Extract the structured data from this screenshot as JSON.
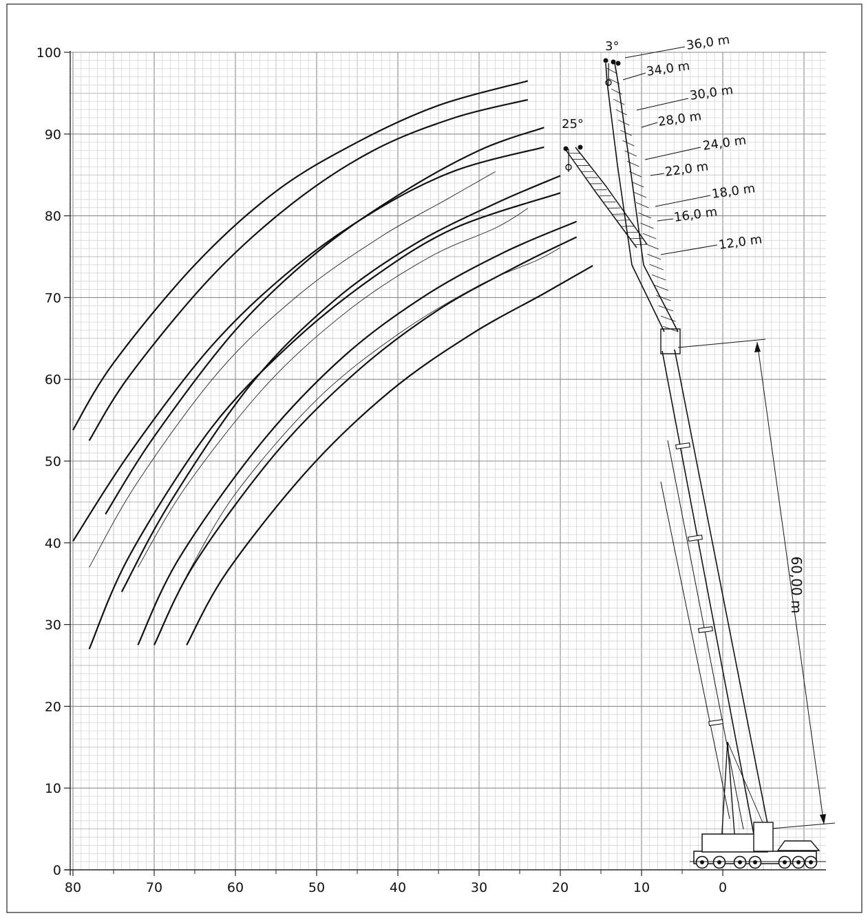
{
  "chart_data": {
    "type": "line",
    "x_axis": {
      "ticks": [
        "80",
        "70",
        "60",
        "50",
        "40",
        "30",
        "20",
        "10",
        "0"
      ],
      "range": [
        80,
        -12
      ]
    },
    "y_axis": {
      "ticks": [
        "0",
        "10",
        "20",
        "30",
        "40",
        "50",
        "60",
        "70",
        "80",
        "90",
        "100"
      ],
      "range": [
        0,
        100
      ]
    },
    "grid": true,
    "luffing_angles": [
      "3°",
      "25°"
    ],
    "main_boom_length": "60,00 m",
    "jib_lengths": [
      "36,0 m",
      "34,0 m",
      "30,0 m",
      "28,0 m",
      "24,0 m",
      "22,0 m",
      "18,0 m",
      "16,0 m",
      "12,0 m"
    ],
    "working_range_curves": [
      {
        "points": [
          [
            80,
            53.8
          ],
          [
            75,
            62
          ],
          [
            65,
            74
          ],
          [
            55,
            83
          ],
          [
            45,
            89
          ],
          [
            35,
            93.5
          ],
          [
            24,
            96.5
          ]
        ]
      },
      {
        "points": [
          [
            78,
            52.5
          ],
          [
            73,
            60.5
          ],
          [
            63,
            72.5
          ],
          [
            53,
            81.5
          ],
          [
            43,
            88
          ],
          [
            33,
            92
          ],
          [
            24,
            94.2
          ]
        ]
      },
      {
        "points": [
          [
            76,
            43.5
          ],
          [
            70,
            53
          ],
          [
            60,
            66
          ],
          [
            50,
            75.5
          ],
          [
            40,
            82.5
          ],
          [
            30,
            88
          ],
          [
            22,
            90.8
          ]
        ]
      },
      {
        "points": [
          [
            80,
            40.2
          ],
          [
            73,
            51
          ],
          [
            63,
            64
          ],
          [
            53,
            73.5
          ],
          [
            43,
            80.5
          ],
          [
            33,
            85.5
          ],
          [
            22,
            88.4
          ]
        ]
      },
      {
        "points": [
          [
            74,
            34
          ],
          [
            68,
            45
          ],
          [
            58,
            59.5
          ],
          [
            48,
            69.5
          ],
          [
            38,
            76.5
          ],
          [
            28,
            81.5
          ],
          [
            20,
            84.9
          ]
        ]
      },
      {
        "points": [
          [
            78,
            27
          ],
          [
            73,
            38.5
          ],
          [
            63,
            54
          ],
          [
            53,
            64.5
          ],
          [
            43,
            72.5
          ],
          [
            33,
            78.5
          ],
          [
            20,
            82.8
          ]
        ]
      },
      {
        "points": [
          [
            72,
            27.5
          ],
          [
            67,
            38
          ],
          [
            57,
            52
          ],
          [
            47,
            62.5
          ],
          [
            37,
            70
          ],
          [
            27,
            75.5
          ],
          [
            18,
            79.3
          ]
        ]
      },
      {
        "points": [
          [
            70,
            27.5
          ],
          [
            65,
            37.5
          ],
          [
            55,
            51
          ],
          [
            45,
            61
          ],
          [
            35,
            68.5
          ],
          [
            25,
            74
          ],
          [
            18,
            77.4
          ]
        ]
      },
      {
        "points": [
          [
            66,
            27.5
          ],
          [
            61,
            36.5
          ],
          [
            51,
            49
          ],
          [
            41,
            58.5
          ],
          [
            31,
            65.5
          ],
          [
            22,
            70.5
          ],
          [
            16,
            73.9
          ]
        ]
      }
    ],
    "thin_curves": [
      {
        "points": [
          [
            78,
            37
          ],
          [
            72,
            47.5
          ],
          [
            62,
            61
          ],
          [
            52,
            70.5
          ],
          [
            42,
            77.5
          ],
          [
            34,
            82
          ],
          [
            28,
            85.4
          ]
        ]
      },
      {
        "points": [
          [
            72,
            37
          ],
          [
            66,
            47
          ],
          [
            56,
            59.5
          ],
          [
            46,
            68.5
          ],
          [
            36,
            75
          ],
          [
            28,
            78.5
          ],
          [
            24,
            80.9
          ]
        ]
      },
      {
        "points": [
          [
            66,
            36
          ],
          [
            60,
            46
          ],
          [
            50,
            57.5
          ],
          [
            40,
            65.5
          ],
          [
            30,
            71.5
          ],
          [
            23,
            74.5
          ],
          [
            20,
            76.1
          ]
        ]
      }
    ]
  }
}
